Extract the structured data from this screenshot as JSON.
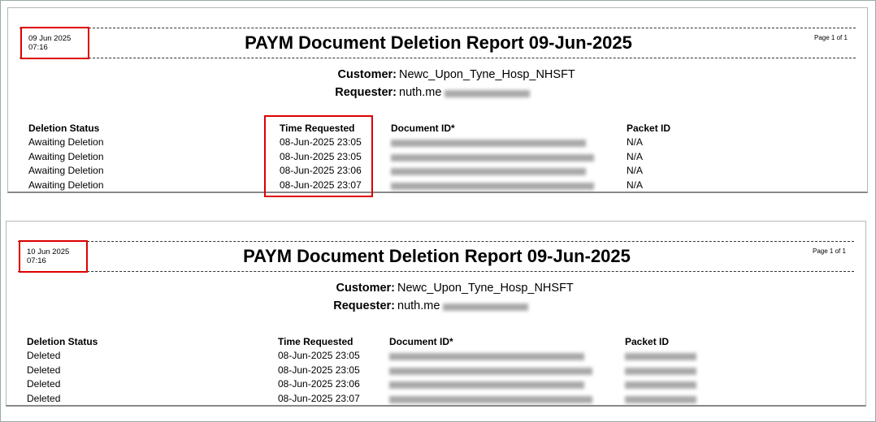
{
  "reports": [
    {
      "date": "09 Jun 2025",
      "time": "07:16",
      "title": "PAYM Document Deletion Report 09-Jun-2025",
      "page": "Page 1 of 1",
      "customer_label": "Customer:",
      "customer": "Newc_Upon_Tyne_Hosp_NHSFT",
      "requester_label": "Requester:",
      "requester": "nuth.me",
      "columns": [
        "Deletion Status",
        "Time Requested",
        "Document ID*",
        "Packet ID"
      ],
      "rows": [
        {
          "status": "Awaiting Deletion",
          "time": "08-Jun-2025 23:05",
          "packet_id": "N/A"
        },
        {
          "status": "Awaiting Deletion",
          "time": "08-Jun-2025 23:05",
          "packet_id": "N/A"
        },
        {
          "status": "Awaiting Deletion",
          "time": "08-Jun-2025 23:06",
          "packet_id": "N/A"
        },
        {
          "status": "Awaiting Deletion",
          "time": "08-Jun-2025 23:07",
          "packet_id": "N/A"
        }
      ]
    },
    {
      "date": "10 Jun 2025",
      "time": "07:16",
      "title": "PAYM Document Deletion Report 09-Jun-2025",
      "page": "Page 1 of 1",
      "customer_label": "Customer:",
      "customer": "Newc_Upon_Tyne_Hosp_NHSFT",
      "requester_label": "Requester:",
      "requester": "nuth.me",
      "columns": [
        "Deletion Status",
        "Time Requested",
        "Document ID*",
        "Packet ID"
      ],
      "rows": [
        {
          "status": "Deleted",
          "time": "08-Jun-2025 23:05"
        },
        {
          "status": "Deleted",
          "time": "08-Jun-2025 23:05"
        },
        {
          "status": "Deleted",
          "time": "08-Jun-2025 23:06"
        },
        {
          "status": "Deleted",
          "time": "08-Jun-2025 23:07"
        }
      ]
    }
  ]
}
